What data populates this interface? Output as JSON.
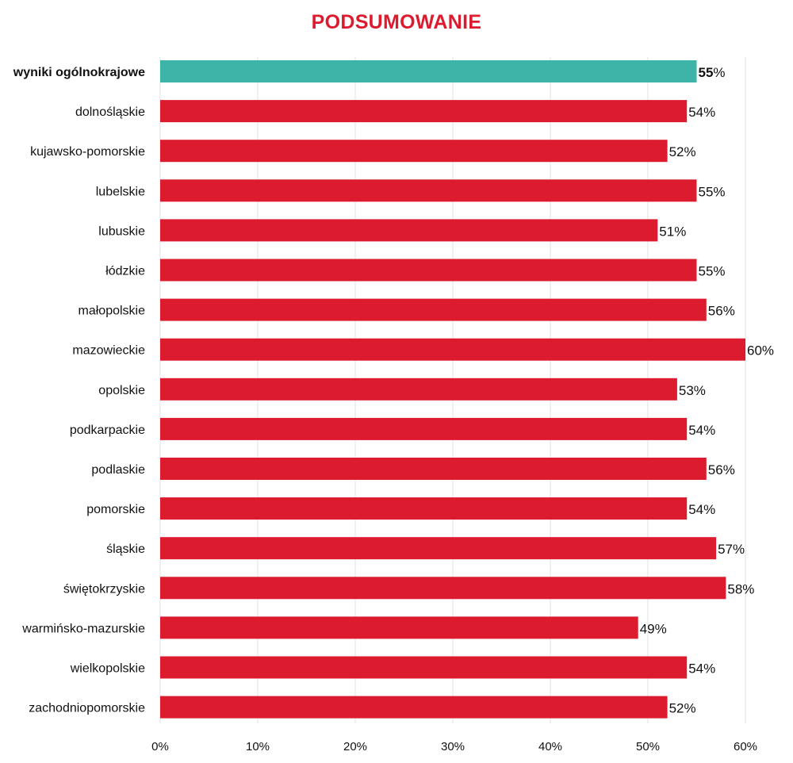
{
  "title": "PODSUMOWANIE",
  "colors": {
    "bar": "#dc1c2e",
    "highlight": "#3db4a8",
    "grid": "#e2e2e2",
    "title": "#dc1c2e"
  },
  "chart_data": {
    "type": "bar",
    "orientation": "horizontal",
    "title": "PODSUMOWANIE",
    "xlabel": "",
    "ylabel": "",
    "xlim": [
      0,
      60
    ],
    "xticks": [
      "0%",
      "10%",
      "20%",
      "30%",
      "40%",
      "50%",
      "60%"
    ],
    "grid": "vertical",
    "highlight_category": "wyniki ogólnokrajowe",
    "categories": [
      "wyniki ogólnokrajowe",
      "dolnośląskie",
      "kujawsko-pomorskie",
      "lubelskie",
      "lubuskie",
      "łódzkie",
      "małopolskie",
      "mazowieckie",
      "opolskie",
      "podkarpackie",
      "podlaskie",
      "pomorskie",
      "śląskie",
      "świętokrzyskie",
      "warmińsko-mazurskie",
      "wielkopolskie",
      "zachodniopomorskie"
    ],
    "values": [
      55,
      54,
      52,
      55,
      51,
      55,
      56,
      60,
      53,
      54,
      56,
      54,
      57,
      58,
      49,
      54,
      52
    ],
    "value_labels": [
      "55%",
      "54%",
      "52%",
      "55%",
      "51%",
      "55%",
      "56%",
      "60%",
      "53%",
      "54%",
      "56%",
      "54%",
      "57%",
      "58%",
      "49%",
      "54%",
      "52%"
    ]
  }
}
